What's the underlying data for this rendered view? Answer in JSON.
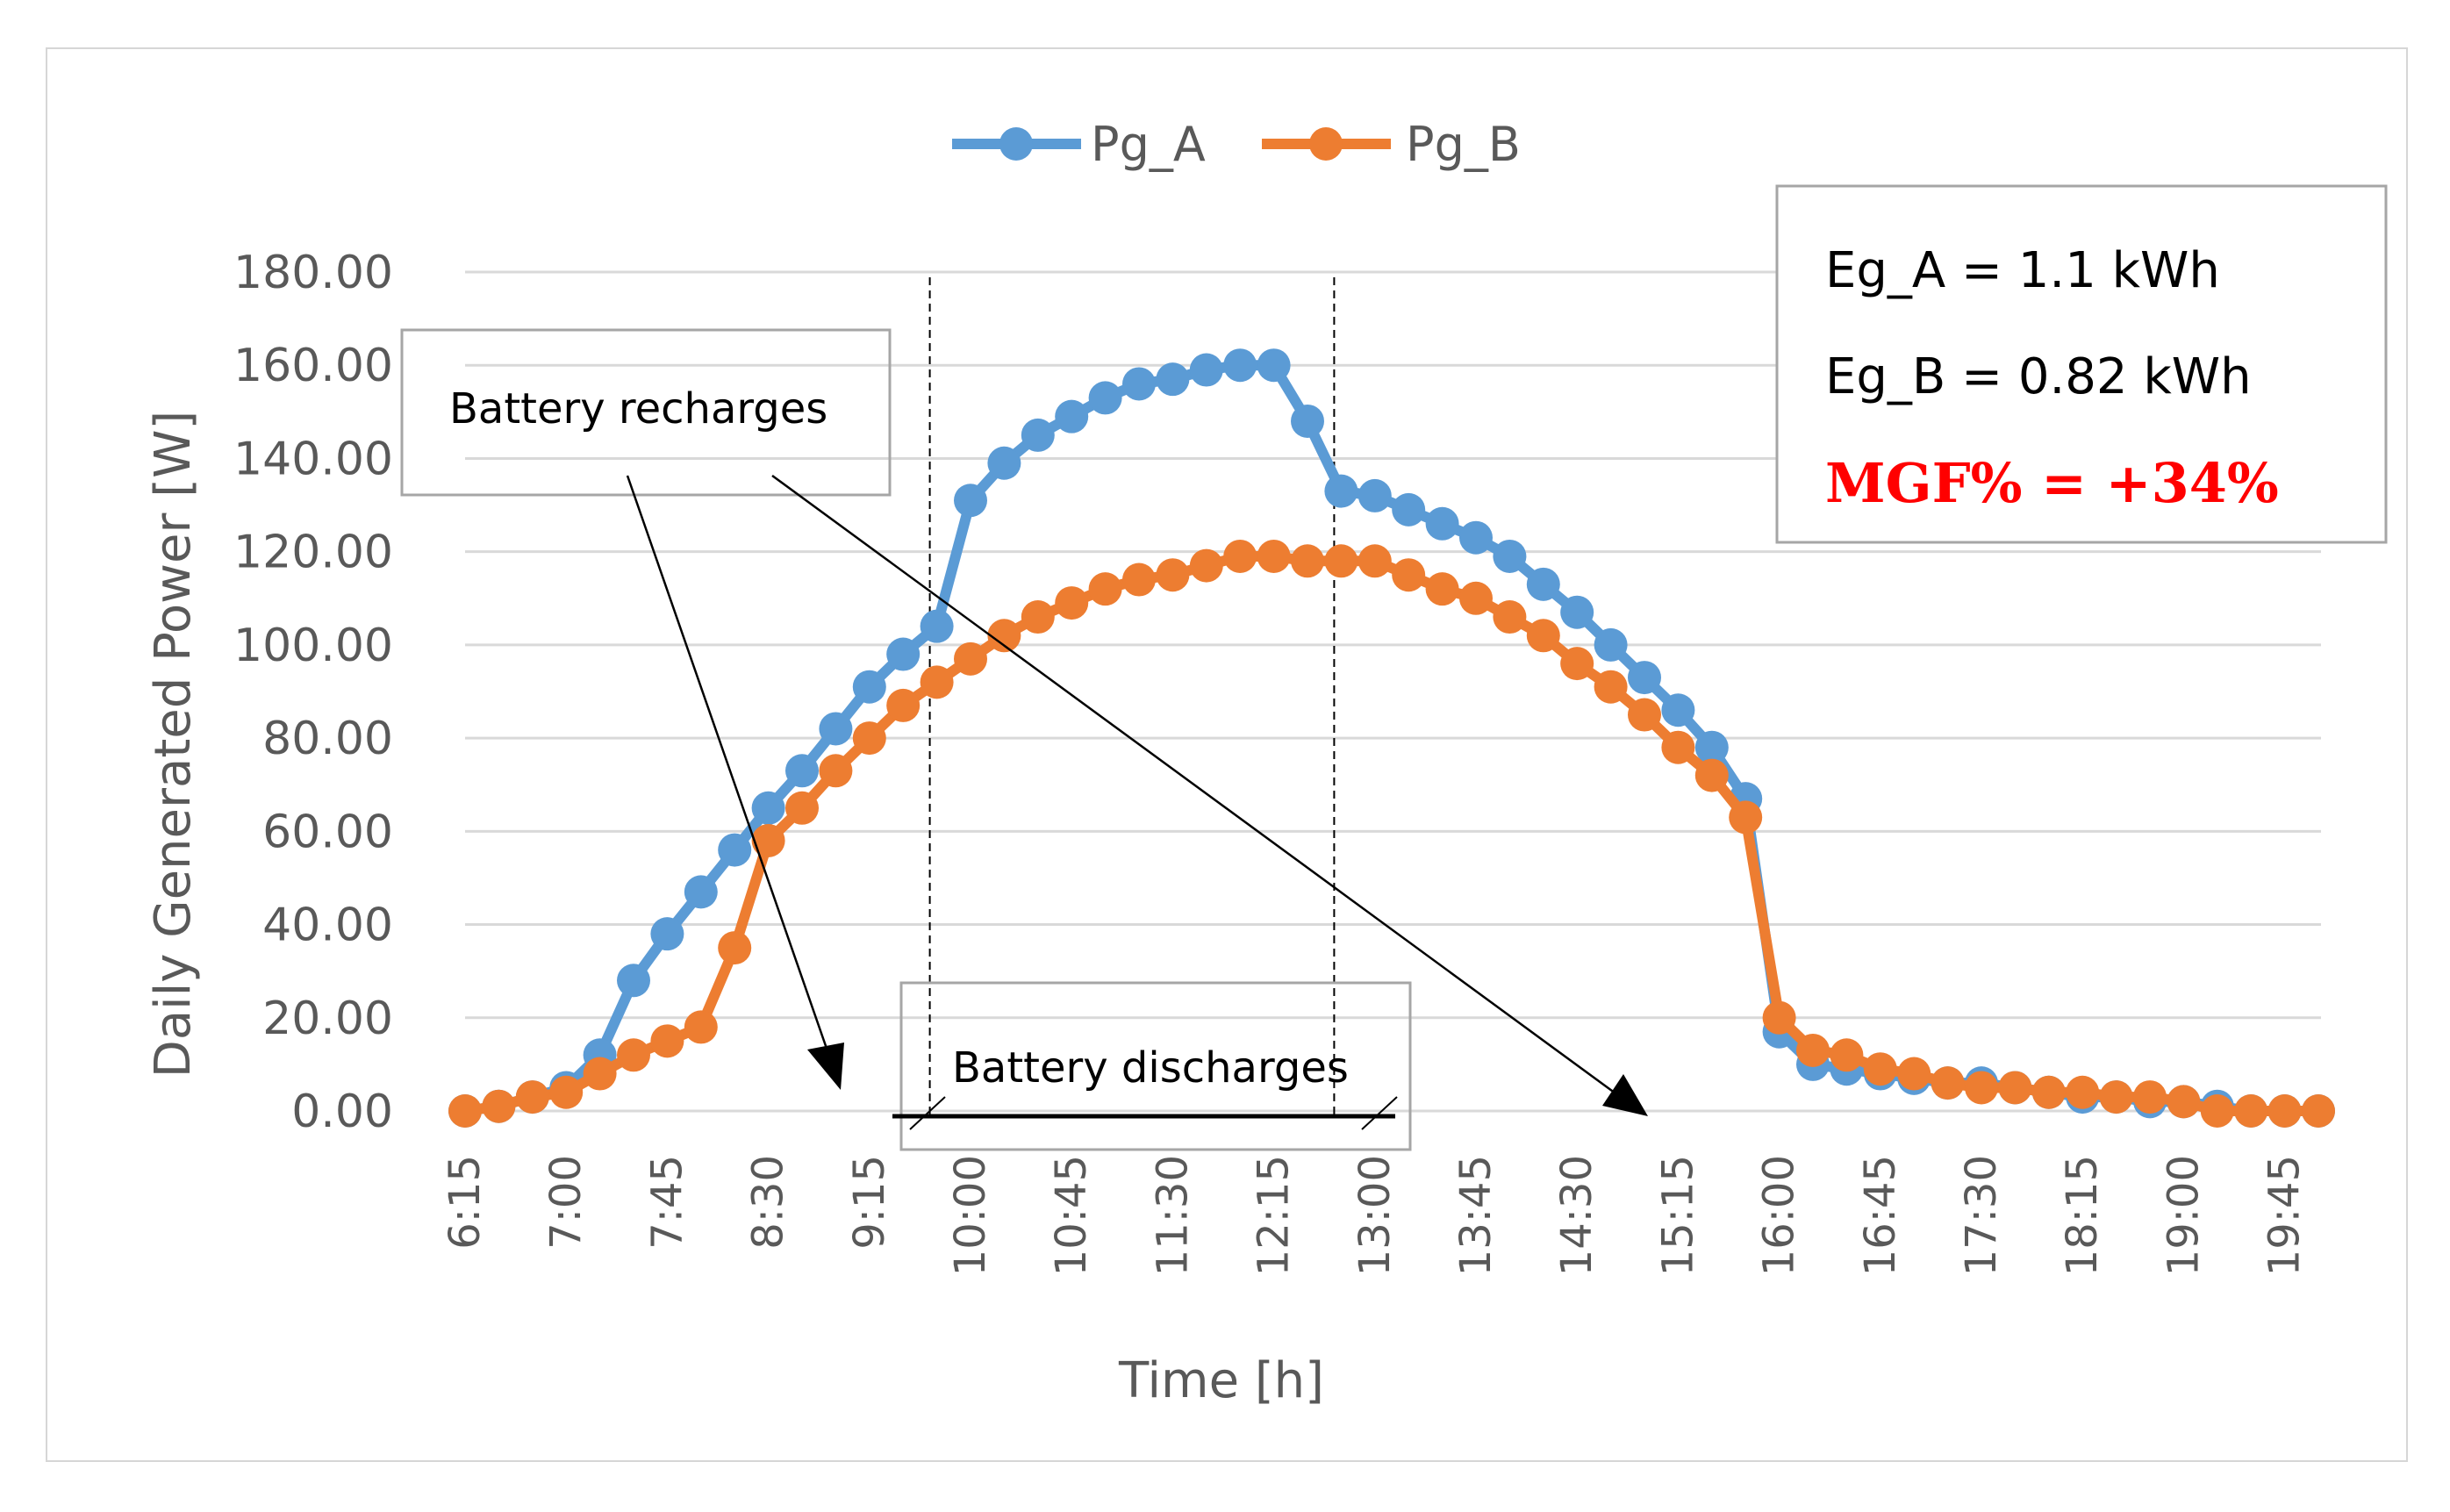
{
  "chart_data": {
    "type": "line",
    "title": "",
    "xlabel": "Time [h]",
    "ylabel": "Daily Generated Power [W]",
    "ylim": [
      0,
      180
    ],
    "yticks": [
      "0.00",
      "20.00",
      "40.00",
      "60.00",
      "80.00",
      "100.00",
      "120.00",
      "140.00",
      "160.00",
      "180.00"
    ],
    "ytick_values": [
      0,
      20,
      40,
      60,
      80,
      100,
      120,
      140,
      160,
      180
    ],
    "x_tick_labels": [
      "6:15",
      "7:00",
      "7:45",
      "8:30",
      "9:15",
      "10:00",
      "10:45",
      "11:30",
      "12:15",
      "13:00",
      "13:45",
      "14:30",
      "15:15",
      "16:00",
      "16:45",
      "17:30",
      "18:15",
      "19:00",
      "19:45"
    ],
    "x": [
      "6:15",
      "6:30",
      "6:45",
      "7:00",
      "7:15",
      "7:30",
      "7:45",
      "8:00",
      "8:15",
      "8:30",
      "8:45",
      "9:00",
      "9:15",
      "9:30",
      "9:45",
      "10:00",
      "10:15",
      "10:30",
      "10:45",
      "11:00",
      "11:15",
      "11:30",
      "11:45",
      "12:00",
      "12:15",
      "12:30",
      "12:45",
      "13:00",
      "13:15",
      "13:30",
      "13:45",
      "14:00",
      "14:15",
      "14:30",
      "14:45",
      "15:00",
      "15:15",
      "15:30",
      "15:45",
      "16:00",
      "16:15",
      "16:30",
      "16:45",
      "17:00",
      "17:15",
      "17:30",
      "17:45",
      "18:00",
      "18:15",
      "18:30",
      "18:45",
      "19:00",
      "19:15",
      "19:30",
      "19:45",
      "20:00"
    ],
    "series": [
      {
        "name": "Pg_A",
        "color": "#5b9bd5",
        "values": [
          0,
          1,
          3,
          5,
          12,
          28,
          38,
          47,
          56,
          65,
          73,
          82,
          91,
          98,
          104,
          131,
          139,
          145,
          149,
          153,
          156,
          157,
          159,
          160,
          160,
          148,
          133,
          132,
          129,
          126,
          123,
          119,
          113,
          107,
          100,
          93,
          86,
          78,
          67,
          17,
          10,
          9,
          8,
          7,
          6,
          6,
          5,
          4,
          3,
          3,
          2,
          2,
          1,
          0,
          0,
          0
        ]
      },
      {
        "name": "Pg_B",
        "color": "#ed7d31",
        "values": [
          0,
          1,
          3,
          4,
          8,
          12,
          15,
          18,
          35,
          58,
          65,
          73,
          80,
          87,
          92,
          97,
          102,
          106,
          109,
          112,
          114,
          115,
          117,
          119,
          119,
          118,
          118,
          118,
          115,
          112,
          110,
          106,
          102,
          96,
          91,
          85,
          78,
          72,
          63,
          20,
          13,
          12,
          9,
          8,
          6,
          5,
          5,
          4,
          4,
          3,
          3,
          2,
          0,
          0,
          0,
          0
        ]
      }
    ],
    "legend_position": "top-center",
    "gridlines": true,
    "annotations": {
      "recharges_label": "Battery recharges",
      "discharges_label": "Battery discharges",
      "discharge_start": "9:45",
      "discharge_end": "12:45"
    },
    "info_box": {
      "eg_a": "Eg_A = 1.1 kWh",
      "eg_b": "Eg_B = 0.82 kWh",
      "mgf": "MGF% = +34%",
      "mgf_color": "#ff0000"
    }
  }
}
